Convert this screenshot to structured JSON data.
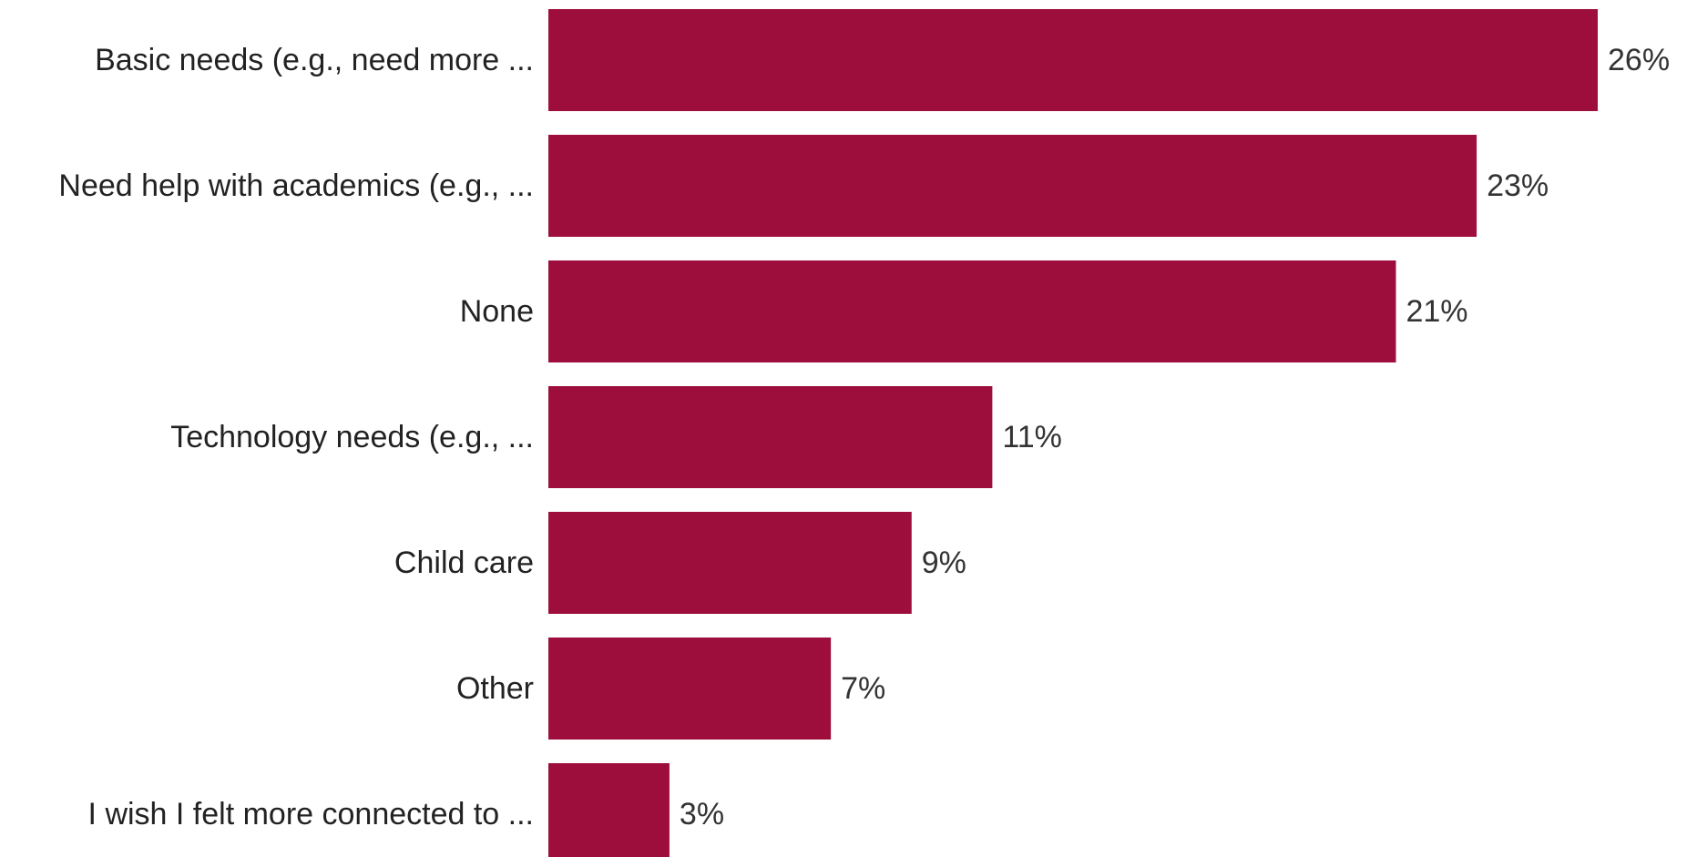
{
  "chart_data": {
    "type": "bar",
    "orientation": "horizontal",
    "title": "",
    "xlabel": "",
    "ylabel": "",
    "categories": [
      "Basic needs (e.g., need more ...",
      "Need help with academics (e.g., ...",
      "None",
      "Technology needs (e.g., ...",
      "Child care",
      "Other",
      "I wish I felt more connected to ..."
    ],
    "values": [
      26,
      23,
      21,
      11,
      9,
      7,
      3
    ],
    "value_labels": [
      "26%",
      "23%",
      "21%",
      "11%",
      "9%",
      "7%",
      "3%"
    ],
    "unit": "%",
    "xlim": [
      0,
      26
    ],
    "grid": false,
    "legend": "none",
    "bar_color": "#9E0E3C"
  }
}
